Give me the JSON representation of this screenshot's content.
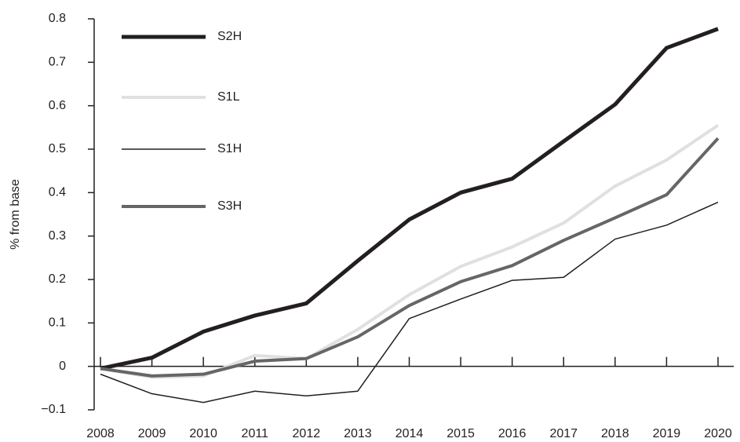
{
  "chart_data": {
    "type": "line",
    "y_label": "% from base",
    "x": [
      2008,
      2009,
      2010,
      2011,
      2012,
      2013,
      2014,
      2015,
      2016,
      2017,
      2018,
      2019,
      2020
    ],
    "xlim": [
      2008,
      2020
    ],
    "xticks": [
      2008,
      2009,
      2010,
      2011,
      2012,
      2013,
      2014,
      2015,
      2016,
      2017,
      2018,
      2019,
      2020
    ],
    "ylim": [
      -0.1,
      0.8
    ],
    "yticks": [
      {
        "value": -0.1,
        "label": "−0.1"
      },
      0,
      0.1,
      0.2,
      0.3,
      0.4,
      0.5,
      0.6,
      0.7,
      0.8
    ],
    "legend": "top-left",
    "series": [
      {
        "name": "S2H",
        "color": "#231f20",
        "width": 5,
        "values": [
          -0.005,
          0.02,
          0.08,
          0.117,
          0.145,
          0.243,
          0.338,
          0.4,
          0.432,
          0.518,
          0.603,
          0.733,
          0.777
        ]
      },
      {
        "name": "S1L",
        "color": "#e0e0e0",
        "width": 4,
        "values": [
          -0.005,
          -0.025,
          -0.022,
          0.025,
          0.018,
          0.085,
          0.165,
          0.23,
          0.275,
          0.33,
          0.415,
          0.475,
          0.555
        ]
      },
      {
        "name": "S1H",
        "color": "#231f20",
        "width": 1.5,
        "values": [
          -0.018,
          -0.063,
          -0.083,
          -0.057,
          -0.068,
          -0.057,
          0.11,
          0.155,
          0.198,
          0.205,
          0.293,
          0.325,
          0.378
        ]
      },
      {
        "name": "S3H",
        "color": "#666666",
        "width": 4,
        "values": [
          -0.005,
          -0.022,
          -0.018,
          0.012,
          0.018,
          0.068,
          0.14,
          0.195,
          0.232,
          0.29,
          0.342,
          0.395,
          0.525
        ]
      }
    ]
  }
}
